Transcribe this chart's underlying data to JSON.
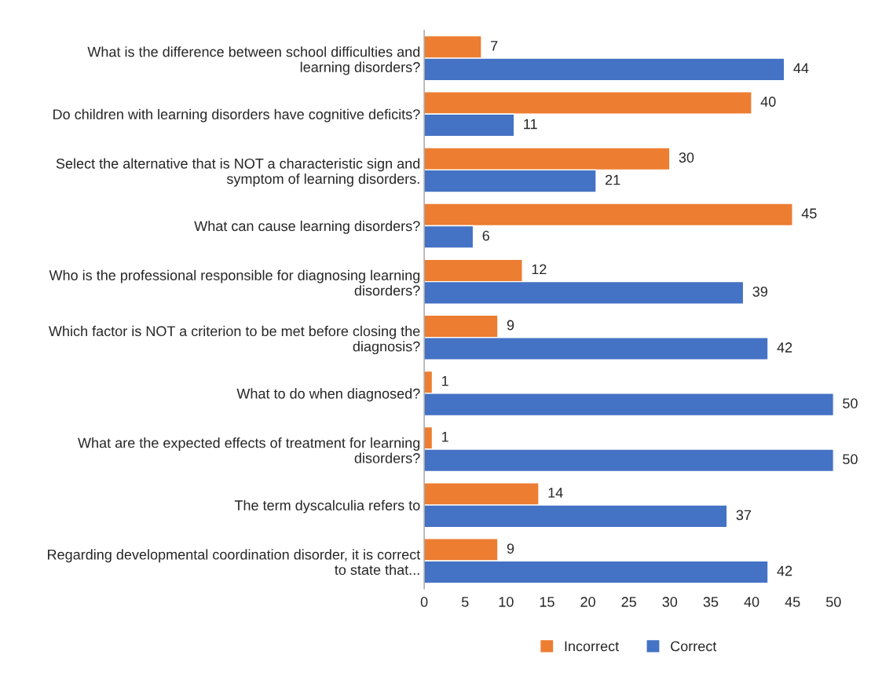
{
  "chart_data": {
    "type": "bar",
    "orientation": "horizontal",
    "categories": [
      "What is the difference between school difficulties and learning disorders?",
      "Do children with learning disorders have cognitive deficits?",
      "Select the alternative that is NOT a characteristic sign and symptom of learning disorders.",
      "What can cause learning disorders?",
      "Who is the professional responsible for diagnosing learning disorders?",
      "Which factor is NOT a criterion to be met before closing the diagnosis?",
      "What to do when diagnosed?",
      "What are the expected effects of treatment for learning disorders?",
      "The term dyscalculia refers to",
      "Regarding developmental coordination disorder, it is correct to state that..."
    ],
    "series": [
      {
        "name": "Incorrect",
        "color": "#ed7d31",
        "values": [
          7,
          40,
          30,
          45,
          12,
          9,
          1,
          1,
          14,
          9
        ]
      },
      {
        "name": "Correct",
        "color": "#4472c4",
        "values": [
          44,
          11,
          21,
          6,
          39,
          42,
          50,
          50,
          37,
          42
        ]
      }
    ],
    "xlim": [
      0,
      50
    ],
    "xticks": [
      0,
      5,
      10,
      15,
      20,
      25,
      30,
      35,
      40,
      45,
      50
    ],
    "data_labels": true,
    "grid": false,
    "legend": "bottom"
  }
}
